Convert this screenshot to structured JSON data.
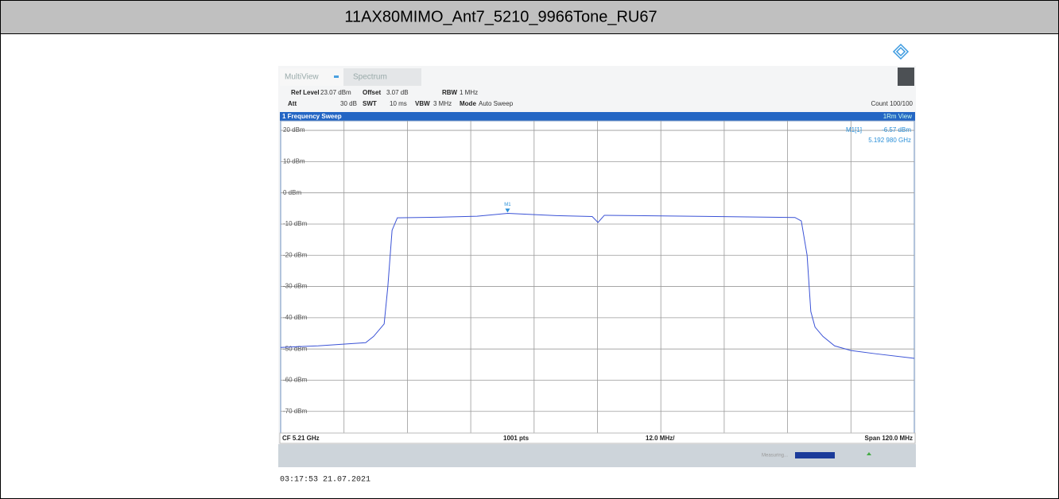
{
  "header": {
    "title": "11AX80MIMO_Ant7_5210_9966Tone_RU67"
  },
  "toolbar": {
    "tabs": [
      "MultiView",
      "Spectrum"
    ]
  },
  "settings": {
    "row1": [
      "Ref Level",
      "23.07 dBm",
      "Offset",
      "3.07 dB",
      "RBW",
      "1 MHz"
    ],
    "row2": [
      "Att",
      "30 dB",
      "SWT",
      "10 ms",
      "VBW",
      "3 MHz",
      "Mode",
      "Auto Sweep"
    ],
    "count": "Count 100/100"
  },
  "window": {
    "title": "1 Frequency Sweep",
    "trace_label": "1Rm View"
  },
  "readout": {
    "name": "M1[1]",
    "level": "-6.57 dBm",
    "frequency": "5.192 980 GHz"
  },
  "footer": {
    "center": "CF 5.21 GHz",
    "points": "1001 pts",
    "per_div": "12.0 MHz/",
    "span": "Span 120.0 MHz"
  },
  "status": {
    "text": "Measuring..."
  },
  "timestamp": "03:17:53  21.07.2021",
  "chart_data": {
    "type": "line",
    "x": [
      5.15,
      5.1571,
      5.1661,
      5.1676,
      5.1696,
      5.1703,
      5.1711,
      5.1721,
      5.1797,
      5.1872,
      5.19298,
      5.2022,
      5.209,
      5.2101,
      5.2113,
      5.2173,
      5.2324,
      5.2474,
      5.2486,
      5.2497,
      5.2504,
      5.2512,
      5.2527,
      5.2549,
      5.258,
      5.2625,
      5.27
    ],
    "series": [
      {
        "name": "1Rm",
        "color": "#3a52d6",
        "values": [
          -49.5,
          -49,
          -48,
          -46,
          -42,
          -30,
          -12,
          -8,
          -7.8,
          -7.5,
          -6.57,
          -7.3,
          -7.6,
          -9.5,
          -7.2,
          -7.3,
          -7.6,
          -7.9,
          -9,
          -20,
          -38,
          -43,
          -46,
          -49,
          -50.5,
          -51.5,
          -53
        ]
      }
    ],
    "marker": {
      "label": "M1",
      "x": 5.19298,
      "y": -6.57
    },
    "xlim": [
      5.15,
      5.27
    ],
    "xticks": [
      5.162,
      5.174,
      5.186,
      5.198,
      5.21,
      5.222,
      5.234,
      5.246,
      5.258
    ],
    "ylim": [
      -76.93,
      23.07
    ],
    "yticks": [
      {
        "value": 20,
        "label": "20 dBm"
      },
      {
        "value": 10,
        "label": "10 dBm"
      },
      {
        "value": 0,
        "label": "0 dBm"
      },
      {
        "value": -10,
        "label": "-10 dBm"
      },
      {
        "value": -20,
        "label": "-20 dBm"
      },
      {
        "value": -30,
        "label": "-30 dBm"
      },
      {
        "value": -40,
        "label": "-40 dBm"
      },
      {
        "value": -50,
        "label": "-50 dBm"
      },
      {
        "value": -60,
        "label": "-60 dBm"
      },
      {
        "value": -70,
        "label": "-70 dBm"
      }
    ],
    "grid": true
  }
}
